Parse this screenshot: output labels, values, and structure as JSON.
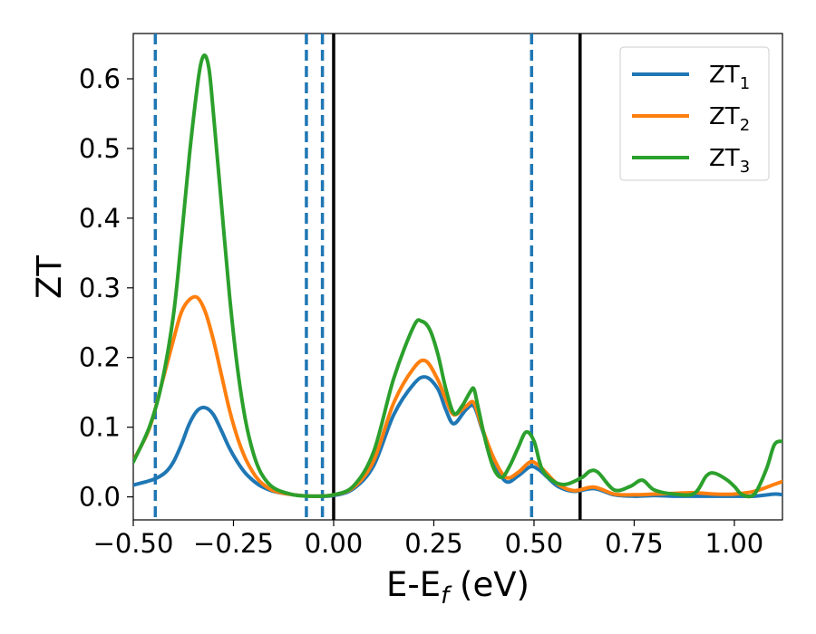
{
  "chart_data": {
    "type": "line",
    "xlabel": "E-E",
    "xlabel_sub": "f",
    "xlabel_unit": " (eV)",
    "ylabel": "ZT",
    "xlim": [
      -0.5,
      1.12
    ],
    "ylim": [
      -0.033,
      0.665
    ],
    "xticks": [
      -0.5,
      -0.25,
      0.0,
      0.25,
      0.5,
      0.75,
      1.0
    ],
    "xtick_labels": [
      "−0.50",
      "−0.25",
      "0.00",
      "0.25",
      "0.50",
      "0.75",
      "1.00"
    ],
    "yticks": [
      0.0,
      0.1,
      0.2,
      0.3,
      0.4,
      0.5,
      0.6
    ],
    "ytick_labels": [
      "0.0",
      "0.1",
      "0.2",
      "0.3",
      "0.4",
      "0.5",
      "0.6"
    ],
    "grid": false,
    "legend_position": "top-right",
    "vlines_dashed": [
      -0.445,
      -0.068,
      -0.028,
      0.494
    ],
    "vlines_solid": [
      0.0,
      0.615
    ],
    "vline_dashed_color": "#1f77b4",
    "vline_solid_color": "#000000",
    "series": [
      {
        "name": "ZT",
        "name_sub": "1",
        "color": "#1f77b4",
        "x": [
          -0.5,
          -0.45,
          -0.42,
          -0.4,
          -0.38,
          -0.36,
          -0.34,
          -0.32,
          -0.3,
          -0.28,
          -0.26,
          -0.24,
          -0.22,
          -0.2,
          -0.18,
          -0.15,
          -0.1,
          -0.05,
          0.0,
          0.05,
          0.1,
          0.15,
          0.2,
          0.23,
          0.26,
          0.28,
          0.3,
          0.33,
          0.35,
          0.37,
          0.4,
          0.43,
          0.46,
          0.49,
          0.51,
          0.53,
          0.56,
          0.6,
          0.65,
          0.7,
          0.75,
          0.8,
          0.85,
          0.9,
          0.95,
          1.0,
          1.05,
          1.1,
          1.12
        ],
        "values": [
          0.017,
          0.025,
          0.035,
          0.05,
          0.075,
          0.105,
          0.124,
          0.128,
          0.118,
          0.095,
          0.07,
          0.05,
          0.034,
          0.023,
          0.015,
          0.008,
          0.003,
          0.001,
          0.002,
          0.012,
          0.045,
          0.118,
          0.162,
          0.172,
          0.155,
          0.125,
          0.105,
          0.125,
          0.13,
          0.098,
          0.05,
          0.022,
          0.03,
          0.043,
          0.04,
          0.03,
          0.015,
          0.008,
          0.012,
          0.003,
          0.001,
          0.002,
          0.001,
          0.001,
          0.001,
          0.001,
          0.001,
          0.004,
          0.003
        ]
      },
      {
        "name": "ZT",
        "name_sub": "2",
        "color": "#ff7f0e",
        "x": [
          -0.5,
          -0.46,
          -0.43,
          -0.4,
          -0.38,
          -0.36,
          -0.34,
          -0.32,
          -0.3,
          -0.28,
          -0.26,
          -0.24,
          -0.22,
          -0.2,
          -0.18,
          -0.15,
          -0.1,
          -0.05,
          0.0,
          0.05,
          0.1,
          0.15,
          0.2,
          0.23,
          0.26,
          0.28,
          0.3,
          0.33,
          0.35,
          0.37,
          0.4,
          0.43,
          0.46,
          0.49,
          0.51,
          0.53,
          0.56,
          0.6,
          0.65,
          0.7,
          0.75,
          0.8,
          0.85,
          0.9,
          0.95,
          1.0,
          1.05,
          1.1,
          1.12
        ],
        "values": [
          0.052,
          0.098,
          0.16,
          0.225,
          0.265,
          0.283,
          0.286,
          0.265,
          0.225,
          0.175,
          0.125,
          0.085,
          0.055,
          0.034,
          0.02,
          0.009,
          0.003,
          0.001,
          0.003,
          0.014,
          0.052,
          0.135,
          0.185,
          0.195,
          0.168,
          0.14,
          0.118,
          0.13,
          0.135,
          0.1,
          0.055,
          0.028,
          0.035,
          0.05,
          0.046,
          0.035,
          0.018,
          0.009,
          0.014,
          0.004,
          0.003,
          0.004,
          0.005,
          0.006,
          0.004,
          0.004,
          0.008,
          0.018,
          0.022
        ]
      },
      {
        "name": "ZT",
        "name_sub": "3",
        "color": "#2ca02c",
        "x": [
          -0.5,
          -0.46,
          -0.43,
          -0.4,
          -0.38,
          -0.36,
          -0.34,
          -0.33,
          -0.32,
          -0.31,
          -0.3,
          -0.28,
          -0.26,
          -0.24,
          -0.22,
          -0.2,
          -0.18,
          -0.15,
          -0.1,
          -0.05,
          0.0,
          0.05,
          0.1,
          0.15,
          0.2,
          0.22,
          0.24,
          0.26,
          0.28,
          0.3,
          0.32,
          0.34,
          0.35,
          0.36,
          0.38,
          0.4,
          0.42,
          0.44,
          0.46,
          0.48,
          0.5,
          0.52,
          0.55,
          0.58,
          0.62,
          0.64,
          0.66,
          0.7,
          0.74,
          0.77,
          0.8,
          0.85,
          0.9,
          0.93,
          0.95,
          0.98,
          1.0,
          1.02,
          1.05,
          1.08,
          1.1,
          1.12
        ],
        "values": [
          0.05,
          0.1,
          0.16,
          0.26,
          0.37,
          0.49,
          0.59,
          0.625,
          0.633,
          0.61,
          0.55,
          0.42,
          0.29,
          0.185,
          0.11,
          0.062,
          0.033,
          0.013,
          0.003,
          0.001,
          0.003,
          0.016,
          0.065,
          0.17,
          0.245,
          0.252,
          0.24,
          0.205,
          0.155,
          0.12,
          0.13,
          0.15,
          0.155,
          0.13,
          0.078,
          0.04,
          0.028,
          0.045,
          0.07,
          0.093,
          0.08,
          0.04,
          0.022,
          0.018,
          0.028,
          0.037,
          0.035,
          0.01,
          0.015,
          0.024,
          0.01,
          0.004,
          0.005,
          0.03,
          0.034,
          0.025,
          0.015,
          0.003,
          0.004,
          0.04,
          0.075,
          0.08
        ]
      }
    ]
  }
}
